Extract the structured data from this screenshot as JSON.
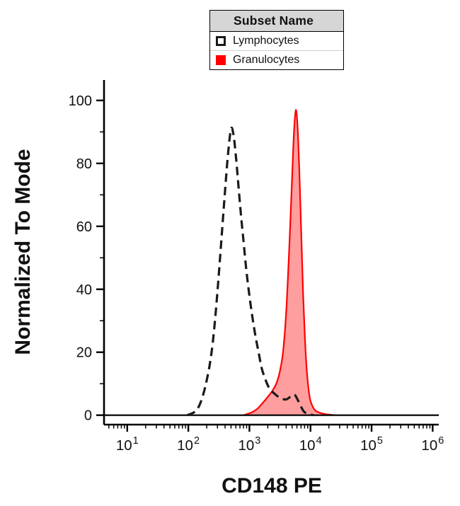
{
  "legend": {
    "title": "Subset Name",
    "entries": [
      {
        "label": "Lymphocytes",
        "swatch": "open",
        "color": "#1a1a1a"
      },
      {
        "label": "Granulocytes",
        "swatch": "filled",
        "color": "#ff0000"
      }
    ]
  },
  "chart_data": {
    "type": "area",
    "title": "",
    "xlabel": "CD148 PE",
    "ylabel": "Normalized To Mode",
    "x_scale": "log10",
    "x_domain_log": [
      0.62,
      6.1
    ],
    "ylim": [
      -3,
      106.5
    ],
    "yticks": [
      0,
      20,
      40,
      60,
      80,
      100
    ],
    "y_minor_step": 10,
    "xticks": [
      {
        "base": "10",
        "exp": "1",
        "log": 1
      },
      {
        "base": "10",
        "exp": "2",
        "log": 2
      },
      {
        "base": "10",
        "exp": "3",
        "log": 3
      },
      {
        "base": "10",
        "exp": "4",
        "log": 4
      },
      {
        "base": "10",
        "exp": "5",
        "log": 5
      },
      {
        "base": "10",
        "exp": "6",
        "log": 6
      }
    ],
    "grid": false,
    "legend_position": "top-center",
    "baseline_y": 0,
    "axis_color": "#000000",
    "series": [
      {
        "name": "Granulocytes",
        "style": "solid",
        "color": "#ff0000",
        "fill": "rgba(255,0,0,0.38)",
        "width": 2.2,
        "peak": {
          "x_log": 3.76,
          "y": 97
        },
        "points": [
          [
            2.9,
            0
          ],
          [
            3.0,
            0.6
          ],
          [
            3.05,
            1
          ],
          [
            3.1,
            1.6
          ],
          [
            3.15,
            2.4
          ],
          [
            3.2,
            3.5
          ],
          [
            3.25,
            4.6
          ],
          [
            3.3,
            5.8
          ],
          [
            3.35,
            7
          ],
          [
            3.4,
            8.5
          ],
          [
            3.45,
            10.5
          ],
          [
            3.5,
            14
          ],
          [
            3.55,
            20
          ],
          [
            3.6,
            32
          ],
          [
            3.65,
            52
          ],
          [
            3.7,
            76
          ],
          [
            3.73,
            90
          ],
          [
            3.76,
            97
          ],
          [
            3.79,
            91
          ],
          [
            3.82,
            76
          ],
          [
            3.85,
            57
          ],
          [
            3.88,
            38
          ],
          [
            3.91,
            24
          ],
          [
            3.94,
            14
          ],
          [
            3.97,
            8
          ],
          [
            4.0,
            4.5
          ],
          [
            4.05,
            2.2
          ],
          [
            4.1,
            1.2
          ],
          [
            4.2,
            0.5
          ],
          [
            4.3,
            0.2
          ],
          [
            4.4,
            0
          ]
        ]
      },
      {
        "name": "Lymphocytes",
        "style": "dashed",
        "color": "#1a1a1a",
        "fill": "none",
        "width": 3.2,
        "dash": [
          12,
          7
        ],
        "peak": {
          "x_log": 2.7,
          "y": 91
        },
        "points": [
          [
            1.98,
            0
          ],
          [
            2.05,
            0.5
          ],
          [
            2.1,
            1
          ],
          [
            2.15,
            2
          ],
          [
            2.2,
            4
          ],
          [
            2.25,
            7
          ],
          [
            2.3,
            11
          ],
          [
            2.35,
            16
          ],
          [
            2.4,
            23
          ],
          [
            2.45,
            33
          ],
          [
            2.5,
            45
          ],
          [
            2.55,
            58
          ],
          [
            2.6,
            71
          ],
          [
            2.65,
            83
          ],
          [
            2.7,
            91
          ],
          [
            2.74,
            89
          ],
          [
            2.78,
            82
          ],
          [
            2.82,
            73
          ],
          [
            2.86,
            64
          ],
          [
            2.9,
            56
          ],
          [
            2.95,
            46
          ],
          [
            3.0,
            38
          ],
          [
            3.05,
            31
          ],
          [
            3.1,
            25
          ],
          [
            3.15,
            20
          ],
          [
            3.2,
            15
          ],
          [
            3.25,
            12
          ],
          [
            3.3,
            9.5
          ],
          [
            3.35,
            8
          ],
          [
            3.4,
            7
          ],
          [
            3.5,
            5.5
          ],
          [
            3.6,
            5
          ],
          [
            3.68,
            6
          ],
          [
            3.74,
            6.5
          ],
          [
            3.8,
            4.5
          ],
          [
            3.85,
            2.5
          ],
          [
            3.9,
            1
          ],
          [
            3.98,
            0.3
          ],
          [
            4.05,
            0
          ]
        ]
      }
    ]
  }
}
